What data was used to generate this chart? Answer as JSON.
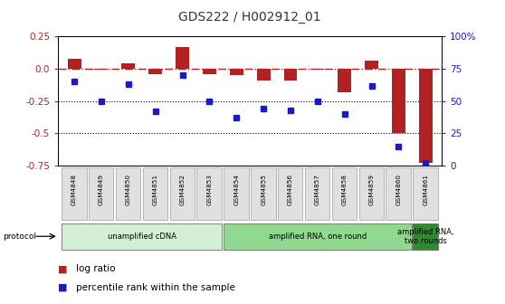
{
  "title": "GDS222 / H002912_01",
  "samples": [
    "GSM4848",
    "GSM4849",
    "GSM4850",
    "GSM4851",
    "GSM4852",
    "GSM4853",
    "GSM4854",
    "GSM4855",
    "GSM4856",
    "GSM4857",
    "GSM4858",
    "GSM4859",
    "GSM4860",
    "GSM4861"
  ],
  "log_ratio": [
    0.08,
    -0.01,
    0.04,
    -0.04,
    0.17,
    -0.04,
    -0.05,
    -0.09,
    -0.09,
    -0.01,
    -0.18,
    0.06,
    -0.5,
    -0.73
  ],
  "percentile": [
    65,
    50,
    63,
    42,
    70,
    50,
    37,
    44,
    43,
    50,
    40,
    62,
    15,
    2
  ],
  "ylim_left": [
    -0.75,
    0.25
  ],
  "ylim_right": [
    0,
    100
  ],
  "yticks_left": [
    -0.75,
    -0.5,
    -0.25,
    0.0,
    0.25
  ],
  "yticks_right": [
    0,
    25,
    50,
    75,
    100
  ],
  "ytick_labels_right": [
    "0",
    "25",
    "50",
    "75",
    "100%"
  ],
  "bar_color": "#b22222",
  "square_color": "#1a1acd",
  "hline_color": "#b22222",
  "dotted_line_color": "#000000",
  "protocol_groups": [
    {
      "label": "unamplified cDNA",
      "start": 0,
      "end": 5,
      "color": "#d4f0d4"
    },
    {
      "label": "amplified RNA, one round",
      "start": 6,
      "end": 12,
      "color": "#90d890"
    },
    {
      "label": "amplified RNA,\ntwo rounds",
      "start": 13,
      "end": 13,
      "color": "#2e8b2e"
    }
  ],
  "legend_items": [
    {
      "color": "#b22222",
      "label": "log ratio"
    },
    {
      "color": "#1a1acd",
      "label": "percentile rank within the sample"
    }
  ],
  "bg_color": "#ffffff",
  "title_fontsize": 10,
  "tick_fontsize": 7.5,
  "label_fontsize": 6,
  "protocol_label": "protocol"
}
